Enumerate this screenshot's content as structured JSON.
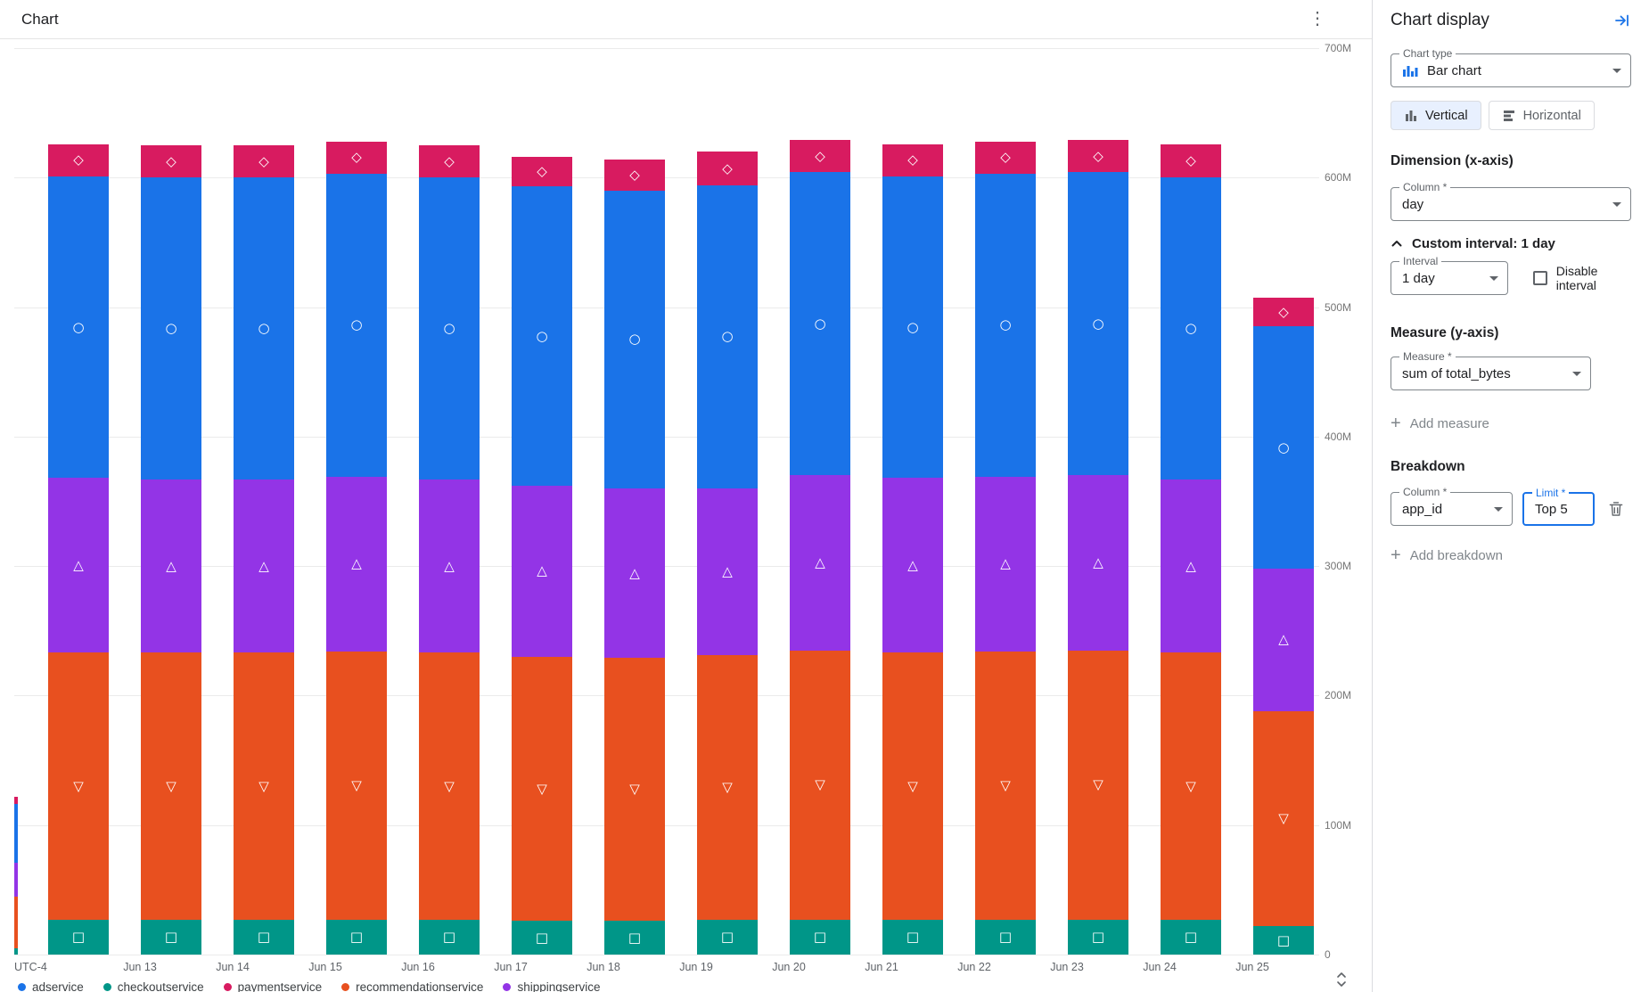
{
  "header": {
    "title": "Chart"
  },
  "icons": {
    "kebab": "⋮",
    "plus": "+"
  },
  "panel": {
    "title": "Chart display",
    "chart_type": {
      "label": "Chart type",
      "value": "Bar chart"
    },
    "orientation": {
      "vertical": "Vertical",
      "horizontal": "Horizontal",
      "selected": "Vertical"
    },
    "dimension": {
      "heading": "Dimension (x-axis)",
      "column_label": "Column *",
      "column_value": "day",
      "custom_interval": "Custom interval: 1 day",
      "interval_label": "Interval",
      "interval_value": "1 day",
      "disable_interval_label": "Disable interval",
      "disable_interval_checked": false
    },
    "measure": {
      "heading": "Measure (y-axis)",
      "measure_label": "Measure *",
      "measure_value": "sum of total_bytes",
      "add_measure": "Add measure"
    },
    "breakdown": {
      "heading": "Breakdown",
      "column_label": "Column *",
      "column_value": "app_id",
      "limit_label": "Limit *",
      "limit_value": "Top 5",
      "add_breakdown": "Add breakdown"
    }
  },
  "chart_data": {
    "type": "bar",
    "stacked": true,
    "title": "Chart",
    "values_unit": "millions of bytes",
    "ylim_bytes": [
      0,
      700000000
    ],
    "grid": true,
    "legend_position": "bottom",
    "y_axis": {
      "ticks": [
        {
          "value": 700,
          "label": "700M"
        },
        {
          "value": 600,
          "label": "600M"
        },
        {
          "value": 500,
          "label": "500M"
        },
        {
          "value": 400,
          "label": "400M"
        },
        {
          "value": 300,
          "label": "300M"
        },
        {
          "value": 200,
          "label": "200M"
        },
        {
          "value": 100,
          "label": "100M"
        },
        {
          "value": 0,
          "label": "0"
        }
      ]
    },
    "x_axis": {
      "timezone_label": "UTC-4"
    },
    "categories": [
      "",
      "Jun 13",
      "Jun 14",
      "Jun 15",
      "Jun 16",
      "Jun 17",
      "Jun 18",
      "Jun 19",
      "Jun 20",
      "Jun 21",
      "Jun 22",
      "Jun 23",
      "Jun 24",
      "Jun 25"
    ],
    "series": [
      {
        "name": "checkoutservice",
        "color": "#009688",
        "marker": "□",
        "values": [
          27,
          27,
          27,
          27,
          27,
          26,
          26,
          27,
          27,
          27,
          27,
          27,
          27,
          22
        ]
      },
      {
        "name": "recommendationservice",
        "color": "#E8501F",
        "marker": "▽",
        "values": [
          206,
          206,
          206,
          207,
          206,
          204,
          203,
          204,
          208,
          206,
          207,
          208,
          206,
          166
        ]
      },
      {
        "name": "shippingservice",
        "color": "#9334E6",
        "marker": "△",
        "values": [
          135,
          134,
          134,
          135,
          134,
          132,
          131,
          129,
          135,
          135,
          135,
          135,
          134,
          110
        ]
      },
      {
        "name": "adservice",
        "color": "#1A73E8",
        "marker": "○",
        "values": [
          233,
          233,
          233,
          234,
          233,
          231,
          230,
          234,
          234,
          233,
          234,
          234,
          233,
          187
        ]
      },
      {
        "name": "paymentservice",
        "color": "#D81B60",
        "marker": "◇",
        "values": [
          25,
          25,
          25,
          25,
          25,
          23,
          24,
          26,
          25,
          25,
          25,
          25,
          26,
          22
        ]
      }
    ],
    "partial_bar": {
      "values": [
        5,
        40,
        26,
        45,
        6
      ]
    },
    "legend": [
      {
        "label": "adservice",
        "color": "#1A73E8"
      },
      {
        "label": "checkoutservice",
        "color": "#009688"
      },
      {
        "label": "paymentservice",
        "color": "#D81B60"
      },
      {
        "label": "recommendationservice",
        "color": "#E8501F"
      },
      {
        "label": "shippingservice",
        "color": "#9334E6"
      }
    ]
  }
}
